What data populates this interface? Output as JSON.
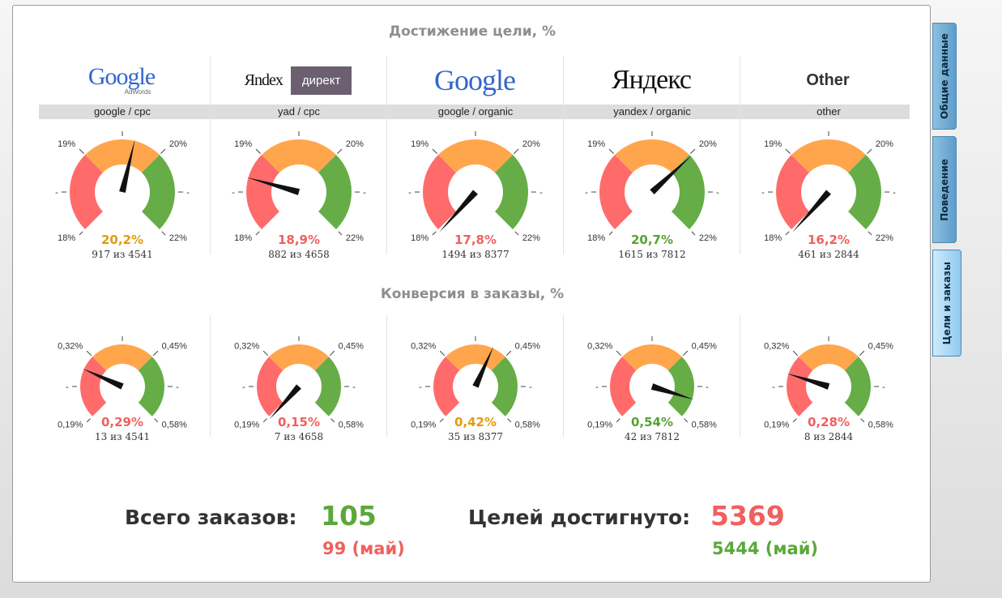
{
  "goal_section_title": "Достижение цели, %",
  "conv_section_title": "Конверсия в заказы, %",
  "colors": {
    "red": "#ff6b6b",
    "orange": "#ffa64d",
    "green": "#66ad47",
    "val_orange": "#e39b0c",
    "val_red": "#f0605e",
    "val_green": "#55a330"
  },
  "sources": [
    {
      "logo": "google-adwords-logo",
      "logo_text": "Google",
      "logo_sub": "AdWords",
      "label": "google / cpc"
    },
    {
      "logo": "yandex-direct-logo",
      "logo_text": "Яndex",
      "logo_sub": "директ",
      "label": "yad / cpc"
    },
    {
      "logo": "google-logo",
      "logo_text": "Google",
      "label": "google / organic"
    },
    {
      "logo": "yandex-logo",
      "logo_text": "Яндекс",
      "label": "yandex / organic"
    },
    {
      "logo": "other-logo",
      "logo_text": "Other",
      "label": "other"
    }
  ],
  "goal_gauges": {
    "range": [
      18,
      22
    ],
    "tick_labels": {
      "low": "18%",
      "left_top": "19%",
      "right_top": "20%",
      "high": "22%"
    },
    "items": [
      {
        "value": 20.2,
        "value_text": "20,2%",
        "color": "val_orange",
        "count_text": "917 из 4541"
      },
      {
        "value": 18.9,
        "value_text": "18,9%",
        "color": "val_red",
        "count_text": "882 из 4658"
      },
      {
        "value": 17.8,
        "value_text": "17,8%",
        "color": "val_red",
        "count_text": "1494 из 8377"
      },
      {
        "value": 20.7,
        "value_text": "20,7%",
        "color": "val_green",
        "count_text": "1615 из 7812"
      },
      {
        "value": 16.2,
        "value_text": "16,2%",
        "color": "val_red",
        "count_text": "461 из 2844"
      }
    ]
  },
  "conv_gauges": {
    "range": [
      0.19,
      0.58
    ],
    "tick_labels": {
      "low": "0,19%",
      "left_top": "0,32%",
      "right_top": "0,45%",
      "high": "0,58%"
    },
    "items": [
      {
        "value": 0.29,
        "value_text": "0,29%",
        "color": "val_red",
        "count_text": "13 из 4541"
      },
      {
        "value": 0.15,
        "value_text": "0,15%",
        "color": "val_red",
        "count_text": "7 из 4658"
      },
      {
        "value": 0.42,
        "value_text": "0,42%",
        "color": "val_orange",
        "count_text": "35 из 8377"
      },
      {
        "value": 0.54,
        "value_text": "0,54%",
        "color": "val_green",
        "count_text": "42 из 7812"
      },
      {
        "value": 0.28,
        "value_text": "0,28%",
        "color": "val_red",
        "count_text": "8 из 2844"
      }
    ]
  },
  "totals": {
    "orders_label": "Всего заказов:",
    "orders_value": "105",
    "orders_prev": "99 (май)",
    "goals_label": "Целей достигнуто:",
    "goals_value": "5369",
    "goals_prev": "5444 (май)"
  },
  "tabs": [
    {
      "label": "Общие данные",
      "active": false
    },
    {
      "label": "Поведение",
      "active": false
    },
    {
      "label": "Цели и заказы",
      "active": true
    }
  ]
}
